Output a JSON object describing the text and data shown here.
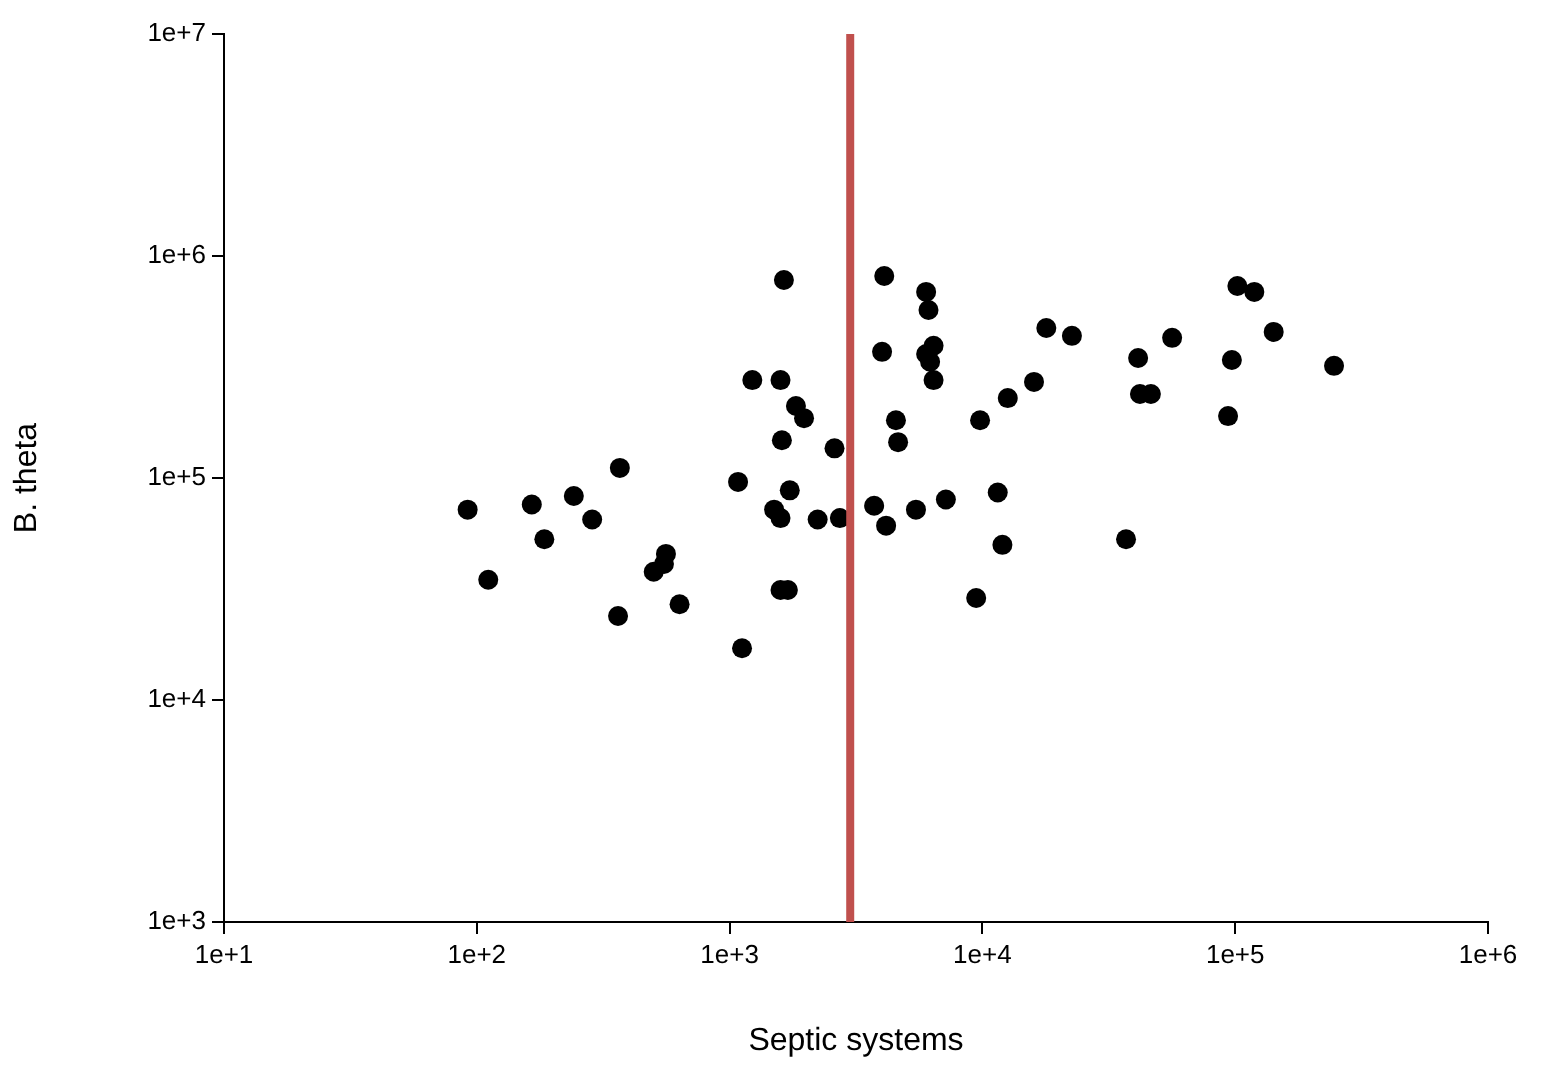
{
  "chart_data": {
    "type": "scatter",
    "xlabel": "Septic systems",
    "ylabel": "B. theta",
    "log": "xy",
    "grid": false,
    "legend": false,
    "marker": "circle",
    "xlim": [
      10,
      1000000
    ],
    "ylim": [
      1000,
      10000000
    ],
    "xticks": [
      {
        "value": 10,
        "label": "1e+1"
      },
      {
        "value": 100,
        "label": "1e+2"
      },
      {
        "value": 1000,
        "label": "1e+3"
      },
      {
        "value": 10000,
        "label": "1e+4"
      },
      {
        "value": 100000,
        "label": "1e+5"
      },
      {
        "value": 1000000,
        "label": "1e+6"
      }
    ],
    "yticks": [
      {
        "value": 1000,
        "label": "1e+3"
      },
      {
        "value": 10000,
        "label": "1e+4"
      },
      {
        "value": 100000,
        "label": "1e+5"
      },
      {
        "value": 1000000,
        "label": "1e+6"
      },
      {
        "value": 10000000,
        "label": "1e+7"
      }
    ],
    "ref_lines": [
      {
        "axis": "x",
        "value": 3000,
        "color": "#c0504d"
      }
    ],
    "series": [
      {
        "color": "#000000",
        "x": [
          92,
          111,
          165,
          185,
          242,
          286,
          368,
          362,
          501,
          550,
          560,
          634,
          1080,
          1120,
          1230,
          1590,
          1640,
          1830,
          1970,
          1610,
          2600,
          1730,
          1500,
          1590,
          2230,
          2730,
          1590,
          1700,
          4090,
          5990,
          6120,
          17900,
          22600,
          56300,
          102000,
          119000,
          142000,
          4010,
          6410,
          5990,
          6210,
          6410,
          41300,
          97000,
          246000,
          16000,
          12600,
          9790,
          42000,
          46400,
          93700,
          4550,
          4640,
          3730,
          4160,
          5460,
          7170,
          11500,
          12000,
          37000,
          9450
        ],
        "values": [
          72000,
          34800,
          76000,
          53000,
          83000,
          65000,
          111000,
          23900,
          37800,
          41000,
          45500,
          27000,
          96000,
          17100,
          276000,
          276000,
          780000,
          211000,
          186000,
          148000,
          136000,
          88000,
          72000,
          66000,
          65000,
          66000,
          31300,
          31300,
          813000,
          689000,
          571000,
          474000,
          437000,
          428000,
          733000,
          689000,
          455000,
          370000,
          394000,
          362000,
          334000,
          276000,
          347000,
          340000,
          320000,
          271000,
          229000,
          182000,
          239000,
          239000,
          190000,
          182000,
          145000,
          75000,
          61000,
          72000,
          80000,
          86000,
          50000,
          53000,
          28800
        ]
      }
    ]
  }
}
